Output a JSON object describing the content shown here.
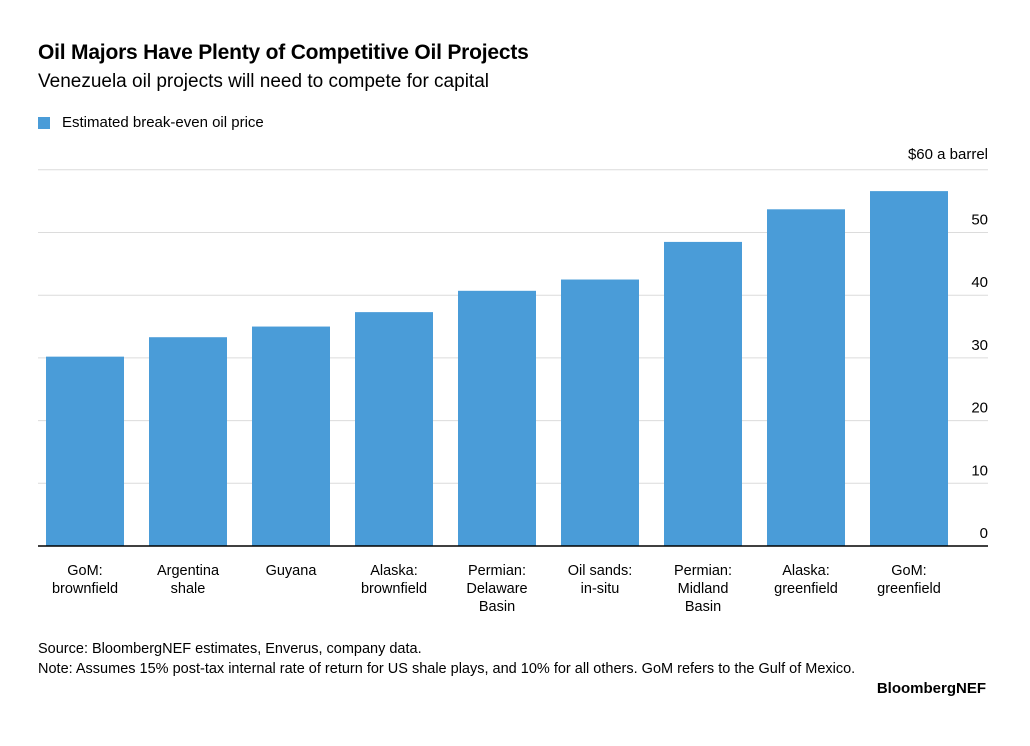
{
  "chart_data": {
    "type": "bar",
    "title": "Oil Majors Have Plenty of Competitive Oil Projects",
    "subtitle": "Venezuela oil projects will need to compete for capital",
    "legend": [
      {
        "name": "Estimated break-even oil price",
        "color": "#4a9cd8"
      }
    ],
    "unit_label": "$60 a barrel",
    "categories": [
      [
        "GoM:",
        "brownfield"
      ],
      [
        "Argentina",
        "shale"
      ],
      [
        "Guyana"
      ],
      [
        "Alaska:",
        "brownfield"
      ],
      [
        "Permian:",
        "Delaware",
        "Basin"
      ],
      [
        "Oil sands:",
        "in-situ"
      ],
      [
        "Permian:",
        "Midland",
        "Basin"
      ],
      [
        "Alaska:",
        "greenfield"
      ],
      [
        "GoM:",
        "greenfield"
      ]
    ],
    "values": [
      30.2,
      33.3,
      35.0,
      37.3,
      40.7,
      42.5,
      48.5,
      53.7,
      56.6
    ],
    "y_ticks": [
      0,
      10,
      20,
      30,
      40,
      50
    ],
    "ylim": [
      0,
      60
    ],
    "y_axis_position": "right",
    "grid": true
  },
  "footer": {
    "source": "Source: BloombergNEF estimates, Enverus, company data.",
    "note": "Note: Assumes 15% post-tax internal rate of return for US shale plays, and 10% for all others. GoM refers to the Gulf of Mexico.",
    "logo": "BloombergNEF"
  }
}
